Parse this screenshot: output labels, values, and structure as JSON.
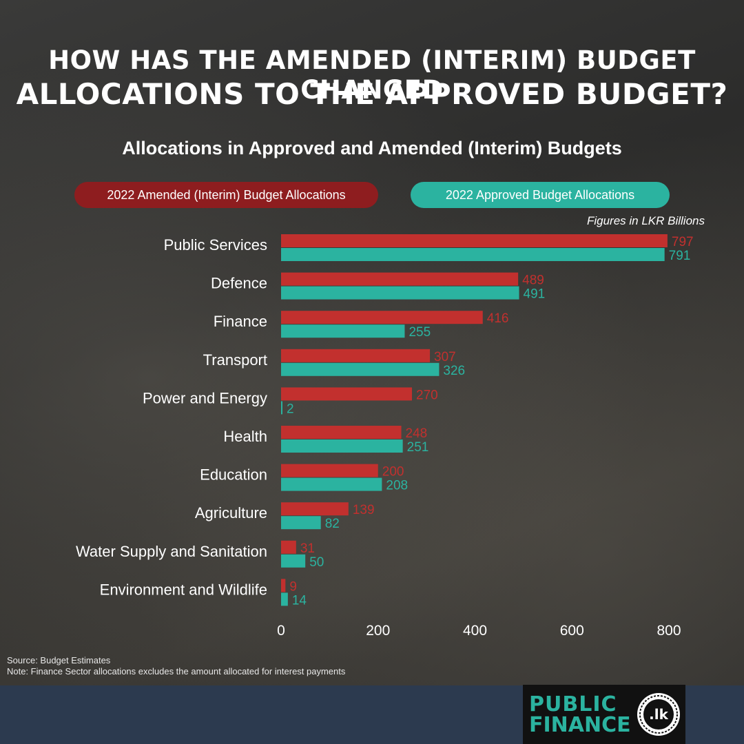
{
  "header": {
    "title_line1": "HOW HAS THE AMENDED (INTERIM) BUDGET CHANGED",
    "title_line2": "ALLOCATIONS TO THE APPROVED BUDGET?",
    "subtitle": "Allocations in Approved and Amended (Interim) Budgets"
  },
  "legend": {
    "amended_label": "2022 Amended (Interim) Budget Allocations",
    "approved_label": "2022 Approved Budget Allocations",
    "units_note": "Figures in LKR Billions"
  },
  "colors": {
    "amended": "#c2302e",
    "approved": "#2bb3a0",
    "amended_pill": "#8e1d1f"
  },
  "chart_data": {
    "type": "bar",
    "orientation": "horizontal",
    "title": "Allocations in Approved and Amended (Interim) Budgets",
    "categories": [
      "Public Services",
      "Defence",
      "Finance",
      "Transport",
      "Power and Energy",
      "Health",
      "Education",
      "Agriculture",
      "Water Supply and Sanitation",
      "Environment and Wildlife"
    ],
    "series": [
      {
        "name": "2022 Amended (Interim) Budget Allocations",
        "values": [
          797,
          489,
          416,
          307,
          270,
          248,
          200,
          139,
          31,
          9
        ]
      },
      {
        "name": "2022 Approved Budget Allocations",
        "values": [
          791,
          491,
          255,
          326,
          2,
          251,
          208,
          82,
          50,
          14
        ]
      }
    ],
    "xlim": [
      0,
      800
    ],
    "xticks": [
      0,
      200,
      400,
      600,
      800
    ],
    "grid": false,
    "legend_position": "top"
  },
  "footer": {
    "source": "Source: Budget Estimates",
    "note": "Note: Finance Sector allocations excludes the amount allocated for interest payments"
  },
  "logo": {
    "line1": "PUBLIC",
    "line2": "FINANCE",
    "seal_text": ".lk"
  }
}
